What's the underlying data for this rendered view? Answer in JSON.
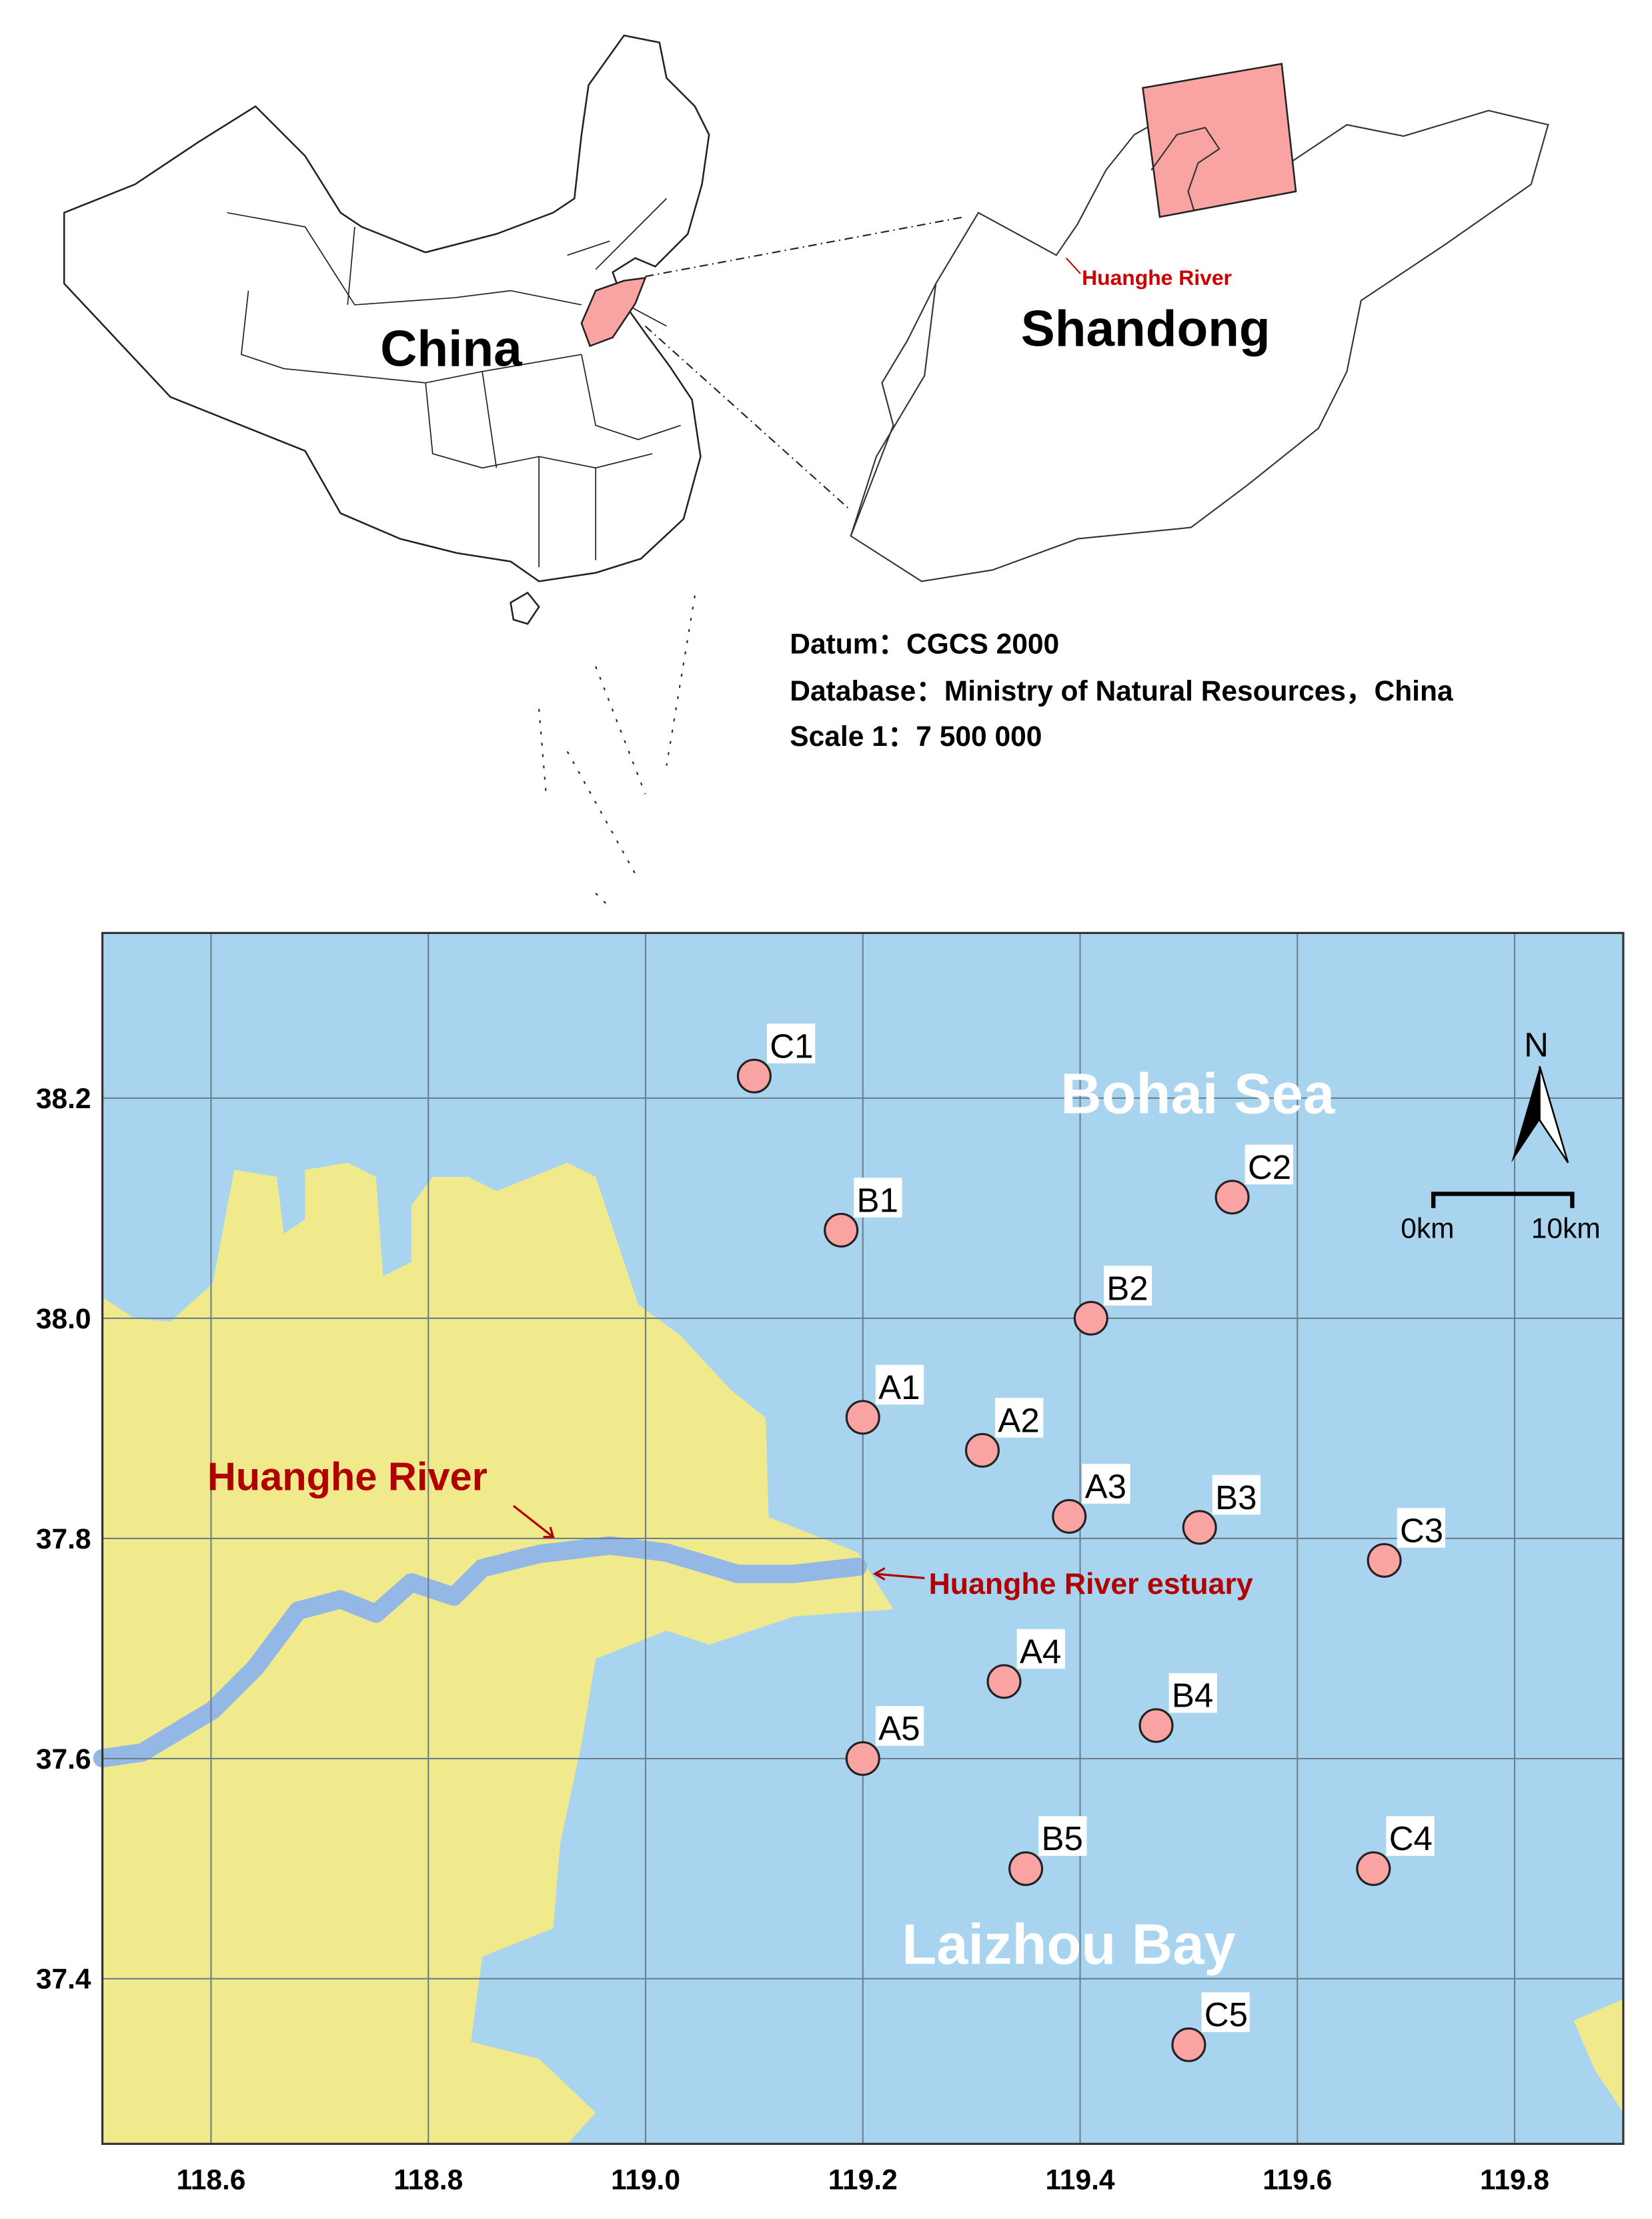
{
  "overview": {
    "china_label": "China",
    "shandong_label": "Shandong",
    "river_label": "Huanghe River",
    "datum": "Datum：CGCS 2000",
    "database": "Database：Ministry of Natural Resources，China",
    "scale": "Scale 1：7 500 000",
    "highlight_color": "#f9a3a3"
  },
  "study_map": {
    "sea_color": "#a9d4f0",
    "land_color": "#f0ea8c",
    "river_color": "#93b8e6",
    "station_color": "#f9a3a3",
    "sea_label_north": "Bohai Sea",
    "sea_label_south": "Laizhou Bay",
    "river_label": "Huanghe River",
    "estuary_label": "Huanghe River estuary",
    "north_label": "N",
    "scalebar": {
      "start": "0km",
      "end": "10km"
    },
    "lon_range": [
      118.5,
      119.9
    ],
    "lat_range": [
      37.25,
      38.35
    ],
    "lon_ticks": [
      "118.6",
      "118.8",
      "119.0",
      "119.2",
      "119.4",
      "119.6",
      "119.8"
    ],
    "lat_ticks": [
      "38.2",
      "38.0",
      "37.8",
      "37.6",
      "37.4"
    ],
    "grid": true,
    "stations": [
      {
        "id": "C1",
        "lon": 119.1,
        "lat": 38.22
      },
      {
        "id": "B1",
        "lon": 119.18,
        "lat": 38.08
      },
      {
        "id": "C2",
        "lon": 119.54,
        "lat": 38.11
      },
      {
        "id": "B2",
        "lon": 119.41,
        "lat": 38.0
      },
      {
        "id": "A1",
        "lon": 119.2,
        "lat": 37.91
      },
      {
        "id": "A2",
        "lon": 119.31,
        "lat": 37.88
      },
      {
        "id": "A3",
        "lon": 119.39,
        "lat": 37.82
      },
      {
        "id": "B3",
        "lon": 119.51,
        "lat": 37.81
      },
      {
        "id": "C3",
        "lon": 119.68,
        "lat": 37.78
      },
      {
        "id": "A4",
        "lon": 119.33,
        "lat": 37.67
      },
      {
        "id": "B4",
        "lon": 119.47,
        "lat": 37.63
      },
      {
        "id": "A5",
        "lon": 119.2,
        "lat": 37.6
      },
      {
        "id": "B5",
        "lon": 119.35,
        "lat": 37.5
      },
      {
        "id": "C4",
        "lon": 119.67,
        "lat": 37.5
      },
      {
        "id": "C5",
        "lon": 119.5,
        "lat": 37.34
      }
    ]
  }
}
